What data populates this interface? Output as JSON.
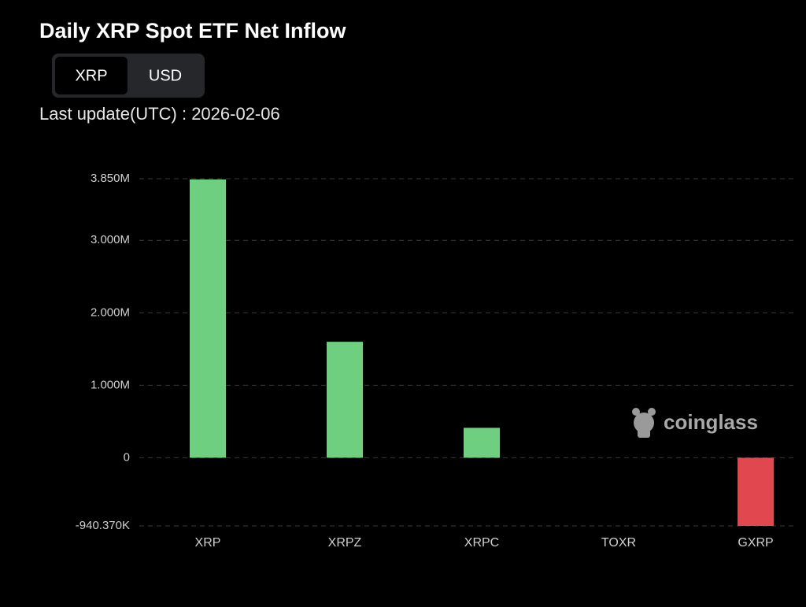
{
  "chart_data": {
    "type": "bar",
    "title": "Daily XRP Spot ETF Net Inflow",
    "toggle": {
      "options": [
        "XRP",
        "USD"
      ],
      "selected": 0
    },
    "subtitle": "Last update(UTC) : 2026-02-06",
    "watermark": "coinglass",
    "categories": [
      "XRP",
      "XRPZ",
      "XRPC",
      "TOXR",
      "GXRP"
    ],
    "values": [
      3840000,
      1600000,
      413000,
      0,
      -940370
    ],
    "colors": [
      "#6fcf80",
      "#6fcf80",
      "#6fcf80",
      "#6fcf80",
      "#e0474f"
    ],
    "ylim": [
      -940370,
      3850000
    ],
    "yticks": [
      {
        "value": -940370,
        "label": "-940.370K"
      },
      0,
      {
        "value": 1000000,
        "label": "1.000M"
      },
      {
        "value": 2000000,
        "label": "2.000M"
      },
      {
        "value": 3000000,
        "label": "3.000M"
      },
      {
        "value": 3850000,
        "label": "3.850M"
      }
    ],
    "grid": true
  }
}
